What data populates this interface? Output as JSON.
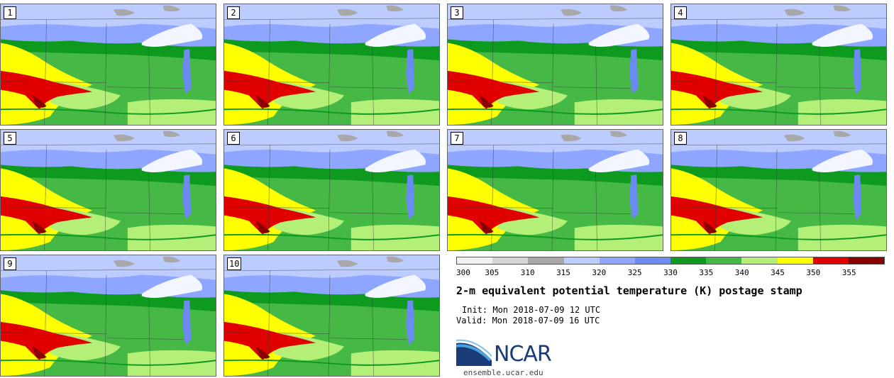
{
  "panels": [
    {
      "label": "1"
    },
    {
      "label": "2"
    },
    {
      "label": "3"
    },
    {
      "label": "4"
    },
    {
      "label": "5"
    },
    {
      "label": "6"
    },
    {
      "label": "7"
    },
    {
      "label": "8"
    },
    {
      "label": "9"
    },
    {
      "label": "10"
    }
  ],
  "colorbar": {
    "ticks": [
      "300",
      "305",
      "310",
      "315",
      "320",
      "325",
      "330",
      "335",
      "340",
      "345",
      "350",
      "355"
    ],
    "colors": [
      "#f0f0f0",
      "#d6d6d6",
      "#a8a8a8",
      "#bcccff",
      "#8ea6ff",
      "#6c8af2",
      "#0d9a1e",
      "#45b845",
      "#b4ef78",
      "#ffff00",
      "#e00000",
      "#8a0000"
    ]
  },
  "title": "2-m equivalent potential temperature (K) postage stamp",
  "init": "Init: Mon 2018-07-09 12 UTC",
  "valid": "Valid: Mon 2018-07-09 16 UTC",
  "logo": {
    "text": "NCAR"
  },
  "site": "ensemble.ucar.edu"
}
